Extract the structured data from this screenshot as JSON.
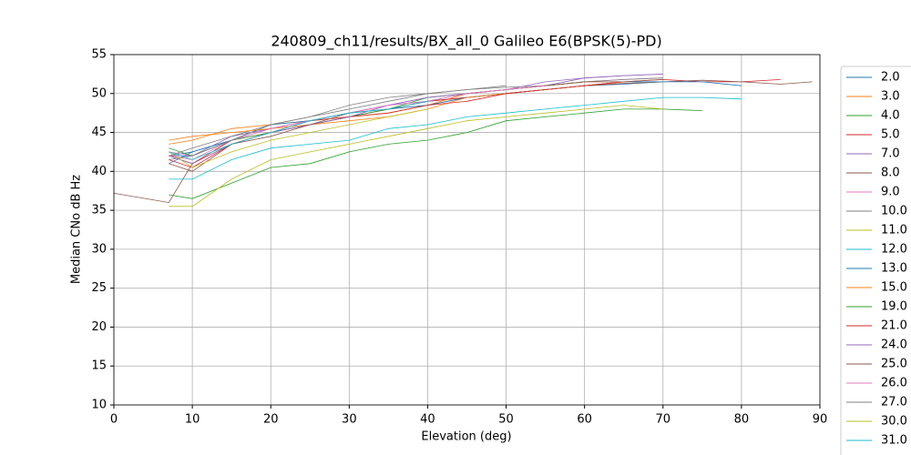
{
  "chart_data": {
    "type": "line",
    "title": "240809_ch11/results/BX_all_0 Galileo E6(BPSK(5)-PD)",
    "xlabel": "Elevation (deg)",
    "ylabel": "Median CNo dB Hz",
    "x": [
      0,
      7,
      10,
      15,
      20,
      25,
      30,
      35,
      40,
      45,
      50,
      55,
      60,
      65,
      70,
      75,
      80,
      85,
      89
    ],
    "xlim": [
      0,
      90
    ],
    "xticks": [
      0,
      10,
      20,
      30,
      40,
      50,
      60,
      70,
      80,
      90
    ],
    "ylim": [
      10,
      55
    ],
    "yticks": [
      10,
      15,
      20,
      25,
      30,
      35,
      40,
      45,
      50,
      55
    ],
    "grid": true,
    "legend": "outside-right",
    "series": [
      {
        "name": "2.0",
        "color": "#1f77b4",
        "values": [
          null,
          42,
          42.5,
          44,
          45.5,
          46.5,
          47.5,
          48.5,
          49,
          49.5,
          50,
          50.5,
          51,
          51.2,
          51.5,
          null,
          null,
          null,
          null
        ]
      },
      {
        "name": "3.0",
        "color": "#ff7f0e",
        "values": [
          null,
          43.5,
          44,
          45.5,
          46,
          46.5,
          47,
          47.5,
          48.5,
          50,
          50.5,
          51,
          51.5,
          51.5,
          null,
          null,
          null,
          null,
          null
        ]
      },
      {
        "name": "4.0",
        "color": "#2ca02c",
        "values": [
          null,
          37,
          36.5,
          38.5,
          40.5,
          41,
          42.5,
          43.5,
          44,
          45,
          46.5,
          47,
          47.5,
          48,
          48,
          47.8,
          null,
          null,
          null
        ]
      },
      {
        "name": "5.0",
        "color": "#d62728",
        "values": [
          null,
          42,
          41,
          44,
          45,
          46.5,
          47,
          48,
          49,
          49.5,
          50,
          50.5,
          51,
          51.5,
          51.8,
          51.5,
          51.5,
          51.8,
          null
        ]
      },
      {
        "name": "7.0",
        "color": "#9467bd",
        "values": [
          null,
          42,
          42,
          44.5,
          45.5,
          46.5,
          47.5,
          48.5,
          49.5,
          50,
          50.5,
          51,
          52,
          52.3,
          52.5,
          null,
          null,
          null,
          null
        ]
      },
      {
        "name": "8.0",
        "color": "#8c564b",
        "values": [
          37.2,
          36,
          41,
          43.5,
          45,
          46,
          47,
          48,
          48.5,
          49.5,
          50,
          50.5,
          51,
          51.3,
          51.5,
          51.7,
          51.5,
          51.2,
          51.5
        ]
      },
      {
        "name": "9.0",
        "color": "#e377c2",
        "values": [
          null,
          42.5,
          42,
          44,
          45.5,
          46.5,
          47.5,
          48.5,
          49.5,
          50,
          50.5,
          51,
          51.5,
          51.8,
          52,
          null,
          null,
          null,
          null
        ]
      },
      {
        "name": "10.0",
        "color": "#7f7f7f",
        "values": [
          null,
          42,
          43,
          44.5,
          46,
          47,
          48,
          49,
          50,
          50.5,
          50.8,
          51,
          51.5,
          51.8,
          52,
          null,
          null,
          null,
          null
        ]
      },
      {
        "name": "11.0",
        "color": "#bcbd22",
        "values": [
          null,
          35.5,
          35.5,
          39,
          41.5,
          42.5,
          43.5,
          44.5,
          45.5,
          46.5,
          47,
          47.5,
          48,
          48.5,
          48,
          null,
          null,
          null,
          null
        ]
      },
      {
        "name": "12.0",
        "color": "#17becf",
        "values": [
          null,
          39,
          39,
          41.5,
          43,
          43.5,
          44,
          45.5,
          46,
          47,
          47.5,
          48,
          48.5,
          49,
          49.5,
          49.5,
          49.3,
          null,
          null
        ]
      },
      {
        "name": "13.0",
        "color": "#1f77b4",
        "values": [
          null,
          41,
          42.5,
          44,
          46,
          46.5,
          47.5,
          48,
          48.5,
          49.5,
          50,
          50.5,
          51,
          51.5,
          51.5,
          51.5,
          51,
          null,
          null
        ]
      },
      {
        "name": "15.0",
        "color": "#ff7f0e",
        "values": [
          null,
          44,
          44.5,
          45,
          45.5,
          46,
          46.5,
          47,
          48,
          49.5,
          50,
          50.5,
          51,
          51.5,
          null,
          null,
          null,
          null,
          null
        ]
      },
      {
        "name": "19.0",
        "color": "#2ca02c",
        "values": [
          null,
          43,
          42,
          44,
          45,
          46,
          47,
          48,
          49.5,
          50,
          50.5,
          51,
          51.5,
          null,
          null,
          null,
          null,
          null,
          null
        ]
      },
      {
        "name": "21.0",
        "color": "#d62728",
        "values": [
          null,
          41.5,
          40.5,
          43.5,
          45,
          46,
          47,
          47.5,
          48.5,
          49,
          50,
          50.5,
          51,
          51.5,
          null,
          null,
          null,
          null,
          null
        ]
      },
      {
        "name": "24.0",
        "color": "#9467bd",
        "values": [
          null,
          42,
          41,
          43.5,
          45,
          46,
          47,
          48.5,
          49.5,
          50,
          50.5,
          51.5,
          52,
          52.3,
          52.5,
          null,
          null,
          null,
          null
        ]
      },
      {
        "name": "25.0",
        "color": "#8c564b",
        "values": [
          null,
          41,
          40,
          43.5,
          44.5,
          46,
          47.5,
          48,
          49,
          50,
          50.5,
          51,
          51.5,
          51.5,
          51.8,
          null,
          null,
          null,
          null
        ]
      },
      {
        "name": "26.0",
        "color": "#e377c2",
        "values": [
          null,
          42,
          41.5,
          44,
          45.5,
          46.5,
          47.5,
          48.5,
          49,
          50,
          50.5,
          51,
          null,
          null,
          null,
          null,
          null,
          null,
          null
        ]
      },
      {
        "name": "27.0",
        "color": "#7f7f7f",
        "values": [
          null,
          41.5,
          42,
          44,
          46,
          47,
          48.5,
          49.5,
          50,
          50.5,
          51,
          null,
          null,
          null,
          null,
          null,
          null,
          null,
          null
        ]
      },
      {
        "name": "30.0",
        "color": "#bcbd22",
        "values": [
          null,
          42.5,
          40.5,
          42.5,
          44,
          45,
          46,
          47,
          48,
          null,
          null,
          null,
          null,
          null,
          null,
          null,
          null,
          null,
          null
        ]
      },
      {
        "name": "31.0",
        "color": "#17becf",
        "values": [
          null,
          42.5,
          41.5,
          43.5,
          45,
          46.5,
          47.5,
          48,
          49,
          null,
          null,
          null,
          null,
          null,
          null,
          null,
          null,
          null,
          null
        ]
      }
    ]
  }
}
